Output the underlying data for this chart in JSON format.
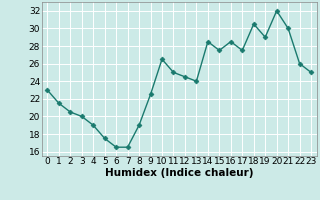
{
  "x": [
    0,
    1,
    2,
    3,
    4,
    5,
    6,
    7,
    8,
    9,
    10,
    11,
    12,
    13,
    14,
    15,
    16,
    17,
    18,
    19,
    20,
    21,
    22,
    23
  ],
  "y": [
    23,
    21.5,
    20.5,
    20,
    19,
    17.5,
    16.5,
    16.5,
    19,
    22.5,
    26.5,
    25,
    24.5,
    24,
    28.5,
    27.5,
    28.5,
    27.5,
    30.5,
    29,
    32,
    30,
    26,
    25
  ],
  "line_color": "#1a7a6e",
  "marker_color": "#1a7a6e",
  "bg_color": "#cceae7",
  "grid_color": "#ffffff",
  "xlabel": "Humidex (Indice chaleur)",
  "xlim": [
    -0.5,
    23.5
  ],
  "ylim": [
    15.5,
    33
  ],
  "yticks": [
    16,
    18,
    20,
    22,
    24,
    26,
    28,
    30,
    32
  ],
  "xticks": [
    0,
    1,
    2,
    3,
    4,
    5,
    6,
    7,
    8,
    9,
    10,
    11,
    12,
    13,
    14,
    15,
    16,
    17,
    18,
    19,
    20,
    21,
    22,
    23
  ],
  "xlabel_fontsize": 7.5,
  "tick_fontsize": 6.5,
  "linewidth": 1.0,
  "markersize": 2.5
}
